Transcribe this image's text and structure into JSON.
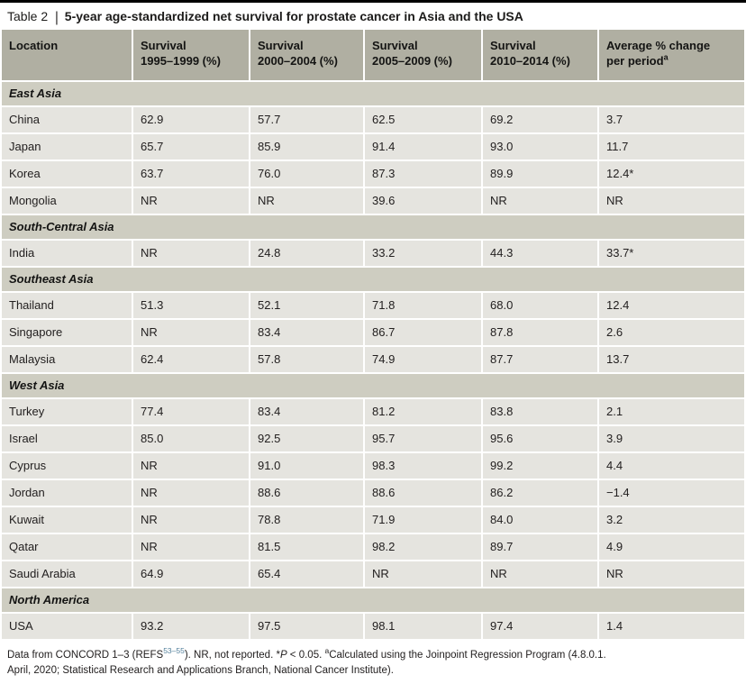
{
  "title": {
    "label": "Table 2",
    "separator": "|",
    "text": "5-year age-standardized net survival for prostate cancer in Asia and the USA"
  },
  "colors": {
    "header_bg": "#b0afa2",
    "section_bg": "#cecdc1",
    "row_bg": "#e5e4df",
    "top_rule": "#000000",
    "reference_link": "#53809c"
  },
  "table": {
    "columns": [
      {
        "line1": "Location",
        "line2": "",
        "sup": ""
      },
      {
        "line1": "Survival",
        "line2": "1995–1999 (%)",
        "sup": ""
      },
      {
        "line1": "Survival",
        "line2": "2000–2004 (%)",
        "sup": ""
      },
      {
        "line1": "Survival",
        "line2": "2005–2009 (%)",
        "sup": ""
      },
      {
        "line1": "Survival",
        "line2": "2010–2014 (%)",
        "sup": ""
      },
      {
        "line1": "Average % change",
        "line2": "per period",
        "sup": "a"
      }
    ],
    "sections": [
      {
        "name": "East Asia",
        "rows": [
          {
            "location": "China",
            "values": [
              "62.9",
              "57.7",
              "62.5",
              "69.2",
              "3.7"
            ]
          },
          {
            "location": "Japan",
            "values": [
              "65.7",
              "85.9",
              "91.4",
              "93.0",
              "11.7"
            ]
          },
          {
            "location": "Korea",
            "values": [
              "63.7",
              "76.0",
              "87.3",
              "89.9",
              "12.4*"
            ]
          },
          {
            "location": "Mongolia",
            "values": [
              "NR",
              "NR",
              "39.6",
              "NR",
              "NR"
            ]
          }
        ]
      },
      {
        "name": "South-Central Asia",
        "rows": [
          {
            "location": "India",
            "values": [
              "NR",
              "24.8",
              "33.2",
              "44.3",
              "33.7*"
            ]
          }
        ]
      },
      {
        "name": "Southeast Asia",
        "rows": [
          {
            "location": "Thailand",
            "values": [
              "51.3",
              "52.1",
              "71.8",
              "68.0",
              "12.4"
            ]
          },
          {
            "location": "Singapore",
            "values": [
              "NR",
              "83.4",
              "86.7",
              "87.8",
              "2.6"
            ]
          },
          {
            "location": "Malaysia",
            "values": [
              "62.4",
              "57.8",
              "74.9",
              "87.7",
              "13.7"
            ]
          }
        ]
      },
      {
        "name": "West Asia",
        "rows": [
          {
            "location": "Turkey",
            "values": [
              "77.4",
              "83.4",
              "81.2",
              "83.8",
              "2.1"
            ]
          },
          {
            "location": "Israel",
            "values": [
              "85.0",
              "92.5",
              "95.7",
              "95.6",
              "3.9"
            ]
          },
          {
            "location": "Cyprus",
            "values": [
              "NR",
              "91.0",
              "98.3",
              "99.2",
              "4.4"
            ]
          },
          {
            "location": "Jordan",
            "values": [
              "NR",
              "88.6",
              "88.6",
              "86.2",
              "−1.4"
            ]
          },
          {
            "location": "Kuwait",
            "values": [
              "NR",
              "78.8",
              "71.9",
              "84.0",
              "3.2"
            ]
          },
          {
            "location": "Qatar",
            "values": [
              "NR",
              "81.5",
              "98.2",
              "89.7",
              "4.9"
            ]
          },
          {
            "location": "Saudi Arabia",
            "values": [
              "64.9",
              "65.4",
              "NR",
              "NR",
              "NR"
            ]
          }
        ]
      },
      {
        "name": "North America",
        "rows": [
          {
            "location": "USA",
            "values": [
              "93.2",
              "97.5",
              "98.1",
              "97.4",
              "1.4"
            ]
          }
        ]
      }
    ]
  },
  "footnote": {
    "lines": [
      [
        {
          "text": "Data from CONCORD 1–3 (REFS",
          "style": "plain"
        },
        {
          "text": "53–55",
          "style": "sup-ref"
        },
        {
          "text": "). NR, not reported. *",
          "style": "plain"
        },
        {
          "text": "P",
          "style": "italic"
        },
        {
          "text": " < 0.05. ",
          "style": "plain"
        },
        {
          "text": "a",
          "style": "sup"
        },
        {
          "text": "Calculated using the Joinpoint Regression Program (4.8.0.1.",
          "style": "plain"
        }
      ],
      [
        {
          "text": "April, 2020; Statistical Research and Applications Branch, National Cancer Institute).",
          "style": "plain"
        }
      ]
    ]
  }
}
